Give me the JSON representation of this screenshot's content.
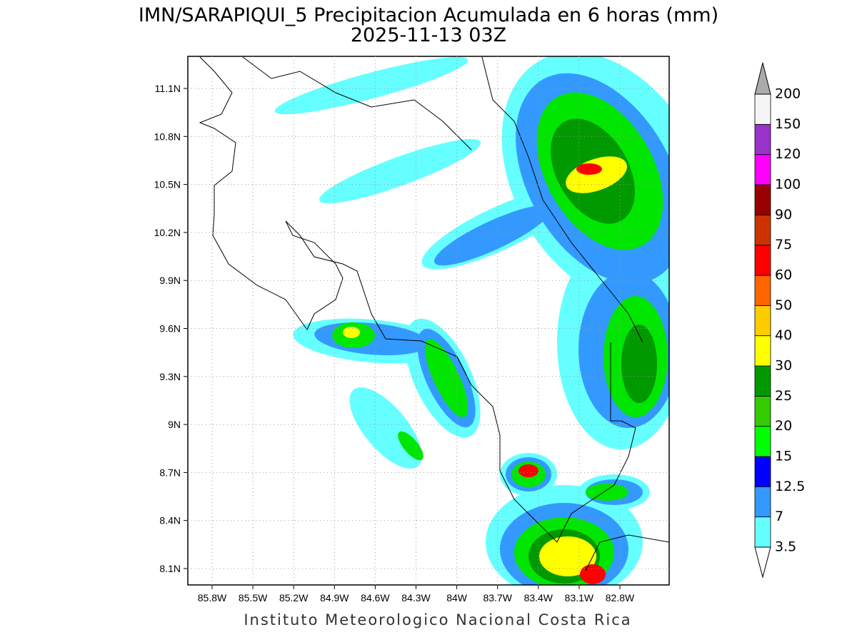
{
  "title": {
    "line1": "IMN/SARAPIQUI_5 Precipitacion Acumulada en 6 horas (mm)",
    "line2": "2025-11-13 03Z"
  },
  "map": {
    "lon_labels": [
      "85.8W",
      "85.5W",
      "85.2W",
      "84.9W",
      "84.6W",
      "84.3W",
      "84W",
      "83.7W",
      "83.4W",
      "83.1W",
      "82.8W"
    ],
    "lat_labels": [
      "11.1N",
      "10.8N",
      "10.5N",
      "10.2N",
      "9.9N",
      "9.6N",
      "9.3N",
      "9N",
      "8.7N",
      "8.4N",
      "8.1N"
    ]
  },
  "colorbar": {
    "levels": [
      3.5,
      7,
      12.5,
      15,
      20,
      25,
      30,
      40,
      50,
      60,
      75,
      90,
      100,
      120,
      150,
      200
    ],
    "colors": [
      "#66ffff",
      "#3399ff",
      "#0000ff",
      "#00ff00",
      "#33cc00",
      "#009900",
      "#ffff00",
      "#ffcc00",
      "#ff6600",
      "#ff0000",
      "#cc3300",
      "#990000",
      "#ff00ff",
      "#9933cc",
      "#f5f5f5"
    ],
    "below_color": "#ffffff",
    "above_color": "#aaaaaa"
  },
  "footer": "Instituto Meteorologico Nacional Costa Rica"
}
